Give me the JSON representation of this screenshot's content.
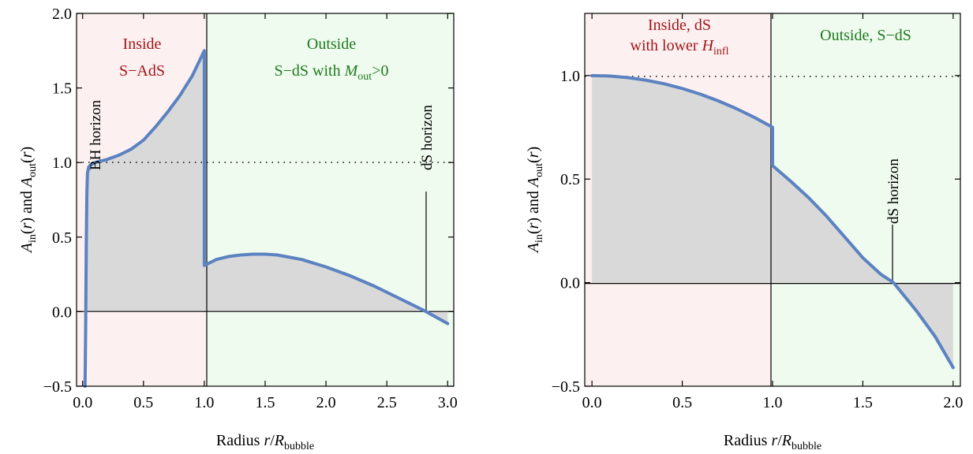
{
  "chart_data": [
    {
      "type": "area",
      "xlim": [
        -0.05,
        3.05
      ],
      "ylim": [
        -0.5,
        2.0
      ],
      "xticks": [
        "0.0",
        "0.5",
        "1.0",
        "1.5",
        "2.0",
        "2.5",
        "3.0"
      ],
      "yticks": [
        "−0.5",
        "0.0",
        "0.5",
        "1.0",
        "1.5",
        "2.0"
      ],
      "xlabel": {
        "pre": "Radius ",
        "var": "r",
        "slash": "/",
        "var2": "R",
        "sub": "bubble"
      },
      "ylabel": {
        "a1": "A",
        "s1": "in",
        "m1": "(",
        "r1": "r",
        "e1": ") and ",
        "a2": "A",
        "s2": "out",
        "m2": "(",
        "r2": "r",
        "e2": ")"
      },
      "regions": {
        "inside": {
          "line1": "Inside",
          "line2": "S−AdS",
          "color": "#fdf0f0"
        },
        "outside": {
          "line1": "Outside",
          "line2_pre": "S−dS with ",
          "line2_var": "M",
          "line2_sub": "out",
          "line2_post": ">0",
          "color": "#effbef"
        }
      },
      "annotations": {
        "bh_horizon": "BH horizon",
        "ds_horizon": "dS horizon"
      },
      "reference_line": 1.0,
      "series": [
        {
          "part": "inside",
          "x": [
            0.02,
            0.025,
            0.03,
            0.035,
            0.04,
            0.05,
            0.06,
            0.08,
            0.1,
            0.15,
            0.2,
            0.3,
            0.4,
            0.5,
            0.6,
            0.7,
            0.8,
            0.9,
            1.0
          ],
          "y": [
            -0.5,
            -0.1,
            0.45,
            0.8,
            0.93,
            0.97,
            0.98,
            0.99,
            1.0,
            1.01,
            1.02,
            1.05,
            1.09,
            1.15,
            1.24,
            1.34,
            1.45,
            1.58,
            1.75
          ]
        },
        {
          "part": "outside",
          "x": [
            1.0,
            1.1,
            1.2,
            1.3,
            1.4,
            1.5,
            1.6,
            1.8,
            2.0,
            2.2,
            2.4,
            2.6,
            2.8,
            3.0
          ],
          "y": [
            0.31,
            0.35,
            0.37,
            0.38,
            0.385,
            0.385,
            0.38,
            0.35,
            0.3,
            0.24,
            0.17,
            0.09,
            0.01,
            -0.08
          ]
        }
      ],
      "line_color": "#5b82c1",
      "fill_color": "#d9d9d9"
    },
    {
      "type": "area",
      "xlim": [
        -0.04,
        2.04
      ],
      "ylim": [
        -0.5,
        1.3
      ],
      "xticks": [
        "0.0",
        "0.5",
        "1.0",
        "1.5",
        "2.0"
      ],
      "yticks": [
        "−0.5",
        "0.0",
        "0.5",
        "1.0"
      ],
      "xlabel": {
        "pre": "Radius ",
        "var": "r",
        "slash": "/",
        "var2": "R",
        "sub": "bubble"
      },
      "ylabel": {
        "a1": "A",
        "s1": "in",
        "m1": "(",
        "r1": "r",
        "e1": ") and ",
        "a2": "A",
        "s2": "out",
        "m2": "(",
        "r2": "r",
        "e2": ")"
      },
      "regions": {
        "inside": {
          "line1": "Inside, dS",
          "line2_pre": "with lower ",
          "line2_var": "H",
          "line2_sub": "infl",
          "color": "#fdf0f0"
        },
        "outside": {
          "line1": "Outside, S−dS",
          "color": "#effbef"
        }
      },
      "annotations": {
        "ds_horizon": "dS horizon"
      },
      "reference_line": 1.0,
      "series": [
        {
          "part": "inside",
          "x": [
            0.0,
            0.1,
            0.2,
            0.3,
            0.4,
            0.5,
            0.6,
            0.7,
            0.8,
            0.9,
            1.0
          ],
          "y": [
            1.0,
            0.9975,
            0.99,
            0.9775,
            0.96,
            0.9375,
            0.91,
            0.8775,
            0.84,
            0.7975,
            0.75
          ]
        },
        {
          "part": "outside",
          "x": [
            1.0,
            1.1,
            1.2,
            1.3,
            1.4,
            1.5,
            1.6,
            1.67,
            1.8,
            1.9,
            2.0
          ],
          "y": [
            0.565,
            0.49,
            0.41,
            0.32,
            0.22,
            0.12,
            0.04,
            0.0,
            -0.14,
            -0.26,
            -0.41
          ]
        }
      ],
      "line_color": "#5b82c1",
      "fill_color": "#d9d9d9"
    }
  ]
}
